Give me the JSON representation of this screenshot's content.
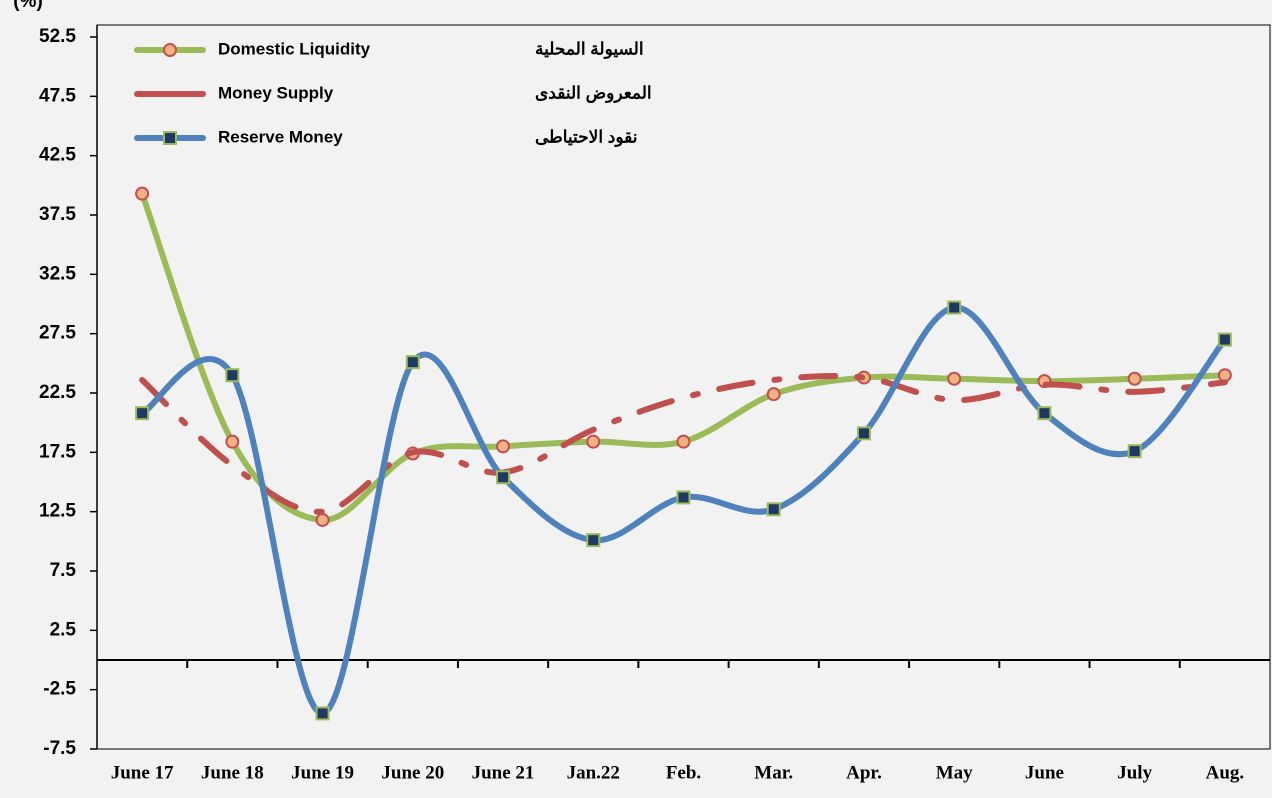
{
  "chart_data": {
    "type": "line",
    "y_label": "(%)",
    "categories": [
      "June 17",
      "June 18",
      "June 19",
      "June 20",
      "June 21",
      "Jan.22",
      "Feb.",
      "Mar.",
      "Apr.",
      "May",
      "June",
      "July",
      "Aug."
    ],
    "series": [
      {
        "name": "Domestic Liquidity",
        "name_ar": "السيولة المحلية",
        "color": "#9bbb59",
        "marker": "circle",
        "values": [
          39.3,
          18.4,
          11.8,
          17.4,
          18.0,
          18.4,
          18.4,
          22.4,
          23.8,
          23.7,
          23.5,
          23.7,
          24.0
        ]
      },
      {
        "name": "Money Supply",
        "name_ar": "المعروض النقدى",
        "color": "#c0504d",
        "marker": "none",
        "values": [
          23.6,
          16.4,
          12.5,
          17.5,
          15.8,
          19.4,
          22.1,
          23.6,
          23.8,
          21.9,
          23.2,
          22.6,
          23.4
        ]
      },
      {
        "name": "Reserve Money",
        "name_ar": "نقود الاحتياطى",
        "color": "#4f81bd",
        "marker": "square",
        "values": [
          20.8,
          24.0,
          -4.5,
          25.1,
          15.4,
          10.1,
          13.7,
          12.7,
          19.1,
          29.7,
          20.8,
          17.6,
          27.0
        ]
      }
    ],
    "ylim": [
      -7.5,
      52.5
    ],
    "yticks": [
      -7.5,
      -2.5,
      2.5,
      7.5,
      12.5,
      17.5,
      22.5,
      27.5,
      32.5,
      37.5,
      42.5,
      47.5,
      52.5
    ],
    "legend": "upper left"
  }
}
